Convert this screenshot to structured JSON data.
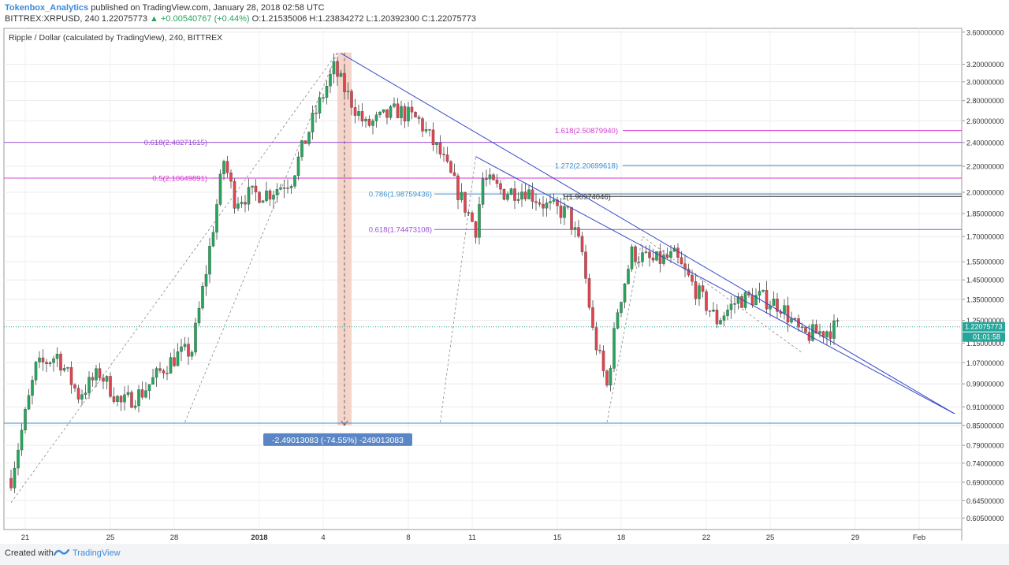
{
  "header": {
    "author": "Tokenbox_Analytics",
    "published": "published on TradingView.com, January 28, 2018 02:58 UTC",
    "symbol_line": "BITTREX:XRPUSD, 240  1.22075773",
    "change": "▲ +0.00540767 (+0.44%)",
    "ohlc": "O:1.21535006  H:1.23834272  L:1.20392300  C:1.22075773"
  },
  "footer": {
    "created_with": "Created with",
    "brand": "TradingView"
  },
  "colors": {
    "up": "#26a65b",
    "down": "#e0454f",
    "trend": "#3548c8",
    "fib_magenta": "#d43ad0",
    "fib_purple": "#9a4dd6",
    "fib_blue": "#3a8fd0",
    "range_fill": "#f2c6b8",
    "price_badge": "#26a69a"
  },
  "chart_data": {
    "type": "candlestick",
    "title": "Ripple / Dollar (calculated by TradingView), 240, BITTREX",
    "price_scale": "log",
    "ylim": [
      0.58,
      3.65
    ],
    "y_ticks": [
      "3.60000000",
      "3.20000000",
      "3.00000000",
      "2.80000000",
      "2.60000000",
      "2.40000000",
      "2.20000000",
      "2.00000000",
      "1.85000000",
      "1.70000000",
      "1.55000000",
      "1.45000000",
      "1.35000000",
      "1.25000000",
      "1.15000000",
      "1.07000000",
      "0.99000000",
      "0.91000000",
      "0.85000000",
      "0.79000000",
      "0.74000000",
      "0.69000000",
      "0.64500000",
      "0.60500000"
    ],
    "x_ticks": [
      {
        "date": "2017-12-21",
        "label": "21"
      },
      {
        "date": "2017-12-25",
        "label": "25"
      },
      {
        "date": "2017-12-28",
        "label": "28"
      },
      {
        "date": "2018-01-01",
        "label": "2018"
      },
      {
        "date": "2018-01-04",
        "label": "4"
      },
      {
        "date": "2018-01-08",
        "label": "8"
      },
      {
        "date": "2018-01-11",
        "label": "11"
      },
      {
        "date": "2018-01-15",
        "label": "15"
      },
      {
        "date": "2018-01-18",
        "label": "18"
      },
      {
        "date": "2018-01-22",
        "label": "22"
      },
      {
        "date": "2018-01-25",
        "label": "25"
      },
      {
        "date": "2018-01-29",
        "label": "29"
      },
      {
        "date": "2018-02-01",
        "label": "Feb"
      }
    ],
    "last_price": "1.22075773",
    "countdown": "01:01:58",
    "anchors": [
      {
        "date": "2017-12-20T08:00",
        "close": 0.7
      },
      {
        "date": "2017-12-21T12:00",
        "close": 1.05
      },
      {
        "date": "2017-12-22T12:00",
        "close": 1.1
      },
      {
        "date": "2017-12-23T12:00",
        "close": 0.95
      },
      {
        "date": "2017-12-24T12:00",
        "close": 1.03
      },
      {
        "date": "2017-12-25T12:00",
        "close": 0.92
      },
      {
        "date": "2017-12-26T12:00",
        "close": 0.96
      },
      {
        "date": "2017-12-27T12:00",
        "close": 1.05
      },
      {
        "date": "2017-12-28T04:00",
        "close": 1.1
      },
      {
        "date": "2017-12-28T20:00",
        "close": 1.12
      },
      {
        "date": "2017-12-29T12:00",
        "close": 1.5
      },
      {
        "date": "2017-12-30T08:00",
        "close": 2.25
      },
      {
        "date": "2017-12-30T20:00",
        "close": 1.95
      },
      {
        "date": "2017-12-31T12:00",
        "close": 1.98
      },
      {
        "date": "2018-01-01T12:00",
        "close": 2.0
      },
      {
        "date": "2018-01-02T12:00",
        "close": 2.1
      },
      {
        "date": "2018-01-03T12:00",
        "close": 2.6
      },
      {
        "date": "2018-01-04T12:00",
        "close": 3.15
      },
      {
        "date": "2018-01-05T04:00",
        "close": 2.85
      },
      {
        "date": "2018-01-06T00:00",
        "close": 2.55
      },
      {
        "date": "2018-01-07T12:00",
        "close": 2.7
      },
      {
        "date": "2018-01-08T12:00",
        "close": 2.6
      },
      {
        "date": "2018-01-09T12:00",
        "close": 2.3
      },
      {
        "date": "2018-01-10T12:00",
        "close": 1.95
      },
      {
        "date": "2018-01-11T04:00",
        "close": 1.75
      },
      {
        "date": "2018-01-11T12:00",
        "close": 2.1
      },
      {
        "date": "2018-01-12T12:00",
        "close": 2.0
      },
      {
        "date": "2018-01-13T12:00",
        "close": 2.02
      },
      {
        "date": "2018-01-14T12:00",
        "close": 1.9
      },
      {
        "date": "2018-01-15T12:00",
        "close": 1.85
      },
      {
        "date": "2018-01-16T04:00",
        "close": 1.6
      },
      {
        "date": "2018-01-16T16:00",
        "close": 1.2
      },
      {
        "date": "2018-01-17T08:00",
        "close": 0.98
      },
      {
        "date": "2018-01-17T20:00",
        "close": 1.3
      },
      {
        "date": "2018-01-18T12:00",
        "close": 1.6
      },
      {
        "date": "2018-01-19T12:00",
        "close": 1.55
      },
      {
        "date": "2018-01-20T12:00",
        "close": 1.58
      },
      {
        "date": "2018-01-21T12:00",
        "close": 1.4
      },
      {
        "date": "2018-01-22T12:00",
        "close": 1.25
      },
      {
        "date": "2018-01-23T12:00",
        "close": 1.35
      },
      {
        "date": "2018-01-24T12:00",
        "close": 1.36
      },
      {
        "date": "2018-01-25T12:00",
        "close": 1.32
      },
      {
        "date": "2018-01-26T12:00",
        "close": 1.18
      },
      {
        "date": "2018-01-27T12:00",
        "close": 1.2
      },
      {
        "date": "2018-01-28T04:00",
        "close": 1.22
      }
    ],
    "horizontal_levels": [
      {
        "label": "1.618(2.50879940)",
        "value": 2.5087994,
        "color": "#d43ad0"
      },
      {
        "label": "0.618(2.40271615)",
        "value": 2.40271615,
        "color": "#9a4dd6"
      },
      {
        "label": "1.272(2.20699618)",
        "value": 2.20699618,
        "color": "#3a8fd0"
      },
      {
        "label": "0.5(2.10649891)",
        "value": 2.10649891,
        "color": "#d43ad0"
      },
      {
        "label": "0.786(1.98759436)",
        "value": 1.98759436,
        "color": "#3a8fd0"
      },
      {
        "label": "1(1.96974046)",
        "value": 1.96974046,
        "color": "#333333"
      },
      {
        "label": "0.618(1.74473108)",
        "value": 1.74473108,
        "color": "#9a4dd6"
      },
      {
        "label": "",
        "value": 0.857,
        "color": "#3a8fd0"
      }
    ],
    "trendlines": [
      {
        "from": {
          "date": "2018-01-04T20:00",
          "value": 3.33
        },
        "to": {
          "date": "2018-02-02T16:00",
          "value": 0.887
        }
      },
      {
        "from": {
          "date": "2018-01-11T04:00",
          "value": 2.28
        },
        "to": {
          "date": "2018-02-02T16:00",
          "value": 0.887
        }
      }
    ],
    "measure": {
      "label": "-2.49013083 (-74.55%) -249013083",
      "from": 3.34,
      "to": 0.85,
      "date_from": "2018-01-04T16:00",
      "date_to": "2018-01-05T08:00"
    }
  }
}
